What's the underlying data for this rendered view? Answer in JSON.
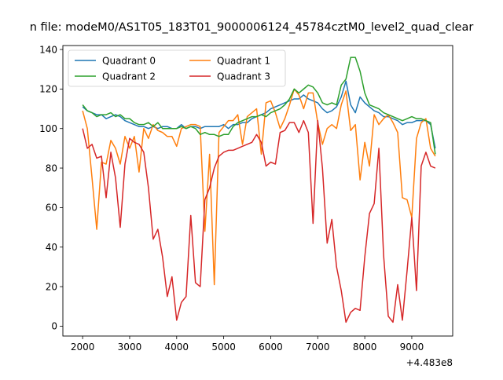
{
  "chart_data": {
    "type": "line",
    "title": "n file: modeM0/AS1T05_183T01_9000006124_45784cztM0_level2_quad_clear",
    "xlabel": "",
    "ylabel": "",
    "x_offset_label": "+4.483e8",
    "xlim": [
      1580,
      9870
    ],
    "ylim": [
      -5,
      142
    ],
    "x_ticks": [
      2000,
      3000,
      4000,
      5000,
      6000,
      7000,
      8000,
      9000
    ],
    "x_tick_labels": [
      "2000",
      "3000",
      "4000",
      "5000",
      "6000",
      "7000",
      "8000",
      "9000"
    ],
    "y_ticks": [
      0,
      20,
      40,
      60,
      80,
      100,
      120,
      140
    ],
    "y_tick_labels": [
      "0",
      "20",
      "40",
      "60",
      "80",
      "100",
      "120",
      "140"
    ],
    "grid": false,
    "legend_position": "top-left",
    "legend_columns": 2,
    "x": [
      2000,
      2100,
      2200,
      2300,
      2400,
      2500,
      2600,
      2700,
      2800,
      2900,
      3000,
      3100,
      3200,
      3300,
      3400,
      3500,
      3600,
      3700,
      3800,
      3900,
      4000,
      4100,
      4200,
      4300,
      4400,
      4500,
      4600,
      4700,
      4800,
      4900,
      5000,
      5100,
      5200,
      5300,
      5400,
      5500,
      5600,
      5700,
      5800,
      5900,
      6000,
      6100,
      6200,
      6300,
      6400,
      6500,
      6600,
      6700,
      6800,
      6900,
      7000,
      7100,
      7200,
      7300,
      7400,
      7500,
      7600,
      7700,
      7800,
      7900,
      8000,
      8100,
      8200,
      8300,
      8400,
      8500,
      8600,
      8700,
      8800,
      8900,
      9000,
      9100,
      9200,
      9300,
      9400,
      9500
    ],
    "series": [
      {
        "name": "Quadrant 0",
        "color": "#1f77b4",
        "values": [
          111,
          109,
          108,
          107,
          107,
          105,
          106,
          107,
          106,
          104,
          103,
          102,
          101,
          101,
          100,
          101,
          100,
          101,
          101,
          100,
          100,
          102,
          100,
          101,
          101,
          100,
          101,
          101,
          101,
          101,
          102,
          100,
          102,
          102,
          103,
          103,
          105,
          106,
          107,
          108,
          110,
          111,
          112,
          113,
          114,
          115,
          115,
          117,
          115,
          114,
          113,
          110,
          108,
          109,
          111,
          116,
          124,
          112,
          108,
          116,
          113,
          111,
          109,
          108,
          106,
          106,
          105,
          104,
          102,
          103,
          103,
          104,
          104,
          104,
          102,
          90
        ]
      },
      {
        "name": "Quadrant 1",
        "color": "#ff7f0e",
        "values": [
          109,
          100,
          75,
          49,
          83,
          82,
          94,
          90,
          82,
          96,
          90,
          96,
          78,
          100,
          95,
          102,
          99,
          98,
          96,
          96,
          91,
          100,
          101,
          102,
          102,
          101,
          48,
          87,
          21,
          98,
          101,
          104,
          104,
          107,
          92,
          106,
          108,
          110,
          87,
          113,
          114,
          108,
          100,
          105,
          112,
          120,
          117,
          110,
          118,
          118,
          103,
          92,
          100,
          102,
          100,
          112,
          119,
          99,
          102,
          74,
          93,
          81,
          107,
          102,
          105,
          107,
          103,
          98,
          65,
          64,
          55,
          95,
          103,
          105,
          90,
          86
        ]
      },
      {
        "name": "Quadrant 2",
        "color": "#2ca02c",
        "values": [
          112,
          109,
          108,
          106,
          107,
          107,
          108,
          106,
          107,
          105,
          105,
          103,
          102,
          102,
          103,
          101,
          103,
          100,
          100,
          100,
          100,
          101,
          100,
          101,
          100,
          97,
          98,
          97,
          97,
          96,
          97,
          97,
          101,
          103,
          104,
          105,
          106,
          106,
          107,
          106,
          108,
          109,
          110,
          112,
          115,
          120,
          118,
          120,
          122,
          121,
          118,
          113,
          112,
          113,
          112,
          122,
          125,
          136,
          136,
          129,
          118,
          112,
          111,
          110,
          108,
          107,
          106,
          105,
          104,
          105,
          106,
          105,
          105,
          104,
          103,
          87
        ]
      },
      {
        "name": "Quadrant 3",
        "color": "#d62728",
        "values": [
          100,
          90,
          92,
          85,
          86,
          65,
          88,
          75,
          50,
          82,
          95,
          93,
          92,
          88,
          70,
          44,
          49,
          35,
          15,
          25,
          3,
          12,
          15,
          56,
          22,
          20,
          64,
          70,
          80,
          86,
          88,
          89,
          89,
          90,
          91,
          92,
          93,
          97,
          93,
          81,
          83,
          82,
          98,
          99,
          103,
          103,
          98,
          104,
          98,
          52,
          104,
          80,
          42,
          54,
          30,
          18,
          2,
          7,
          9,
          8,
          35,
          57,
          62,
          90,
          36,
          5,
          2,
          21,
          3,
          28,
          55,
          18,
          81,
          88,
          81,
          80
        ]
      }
    ]
  }
}
